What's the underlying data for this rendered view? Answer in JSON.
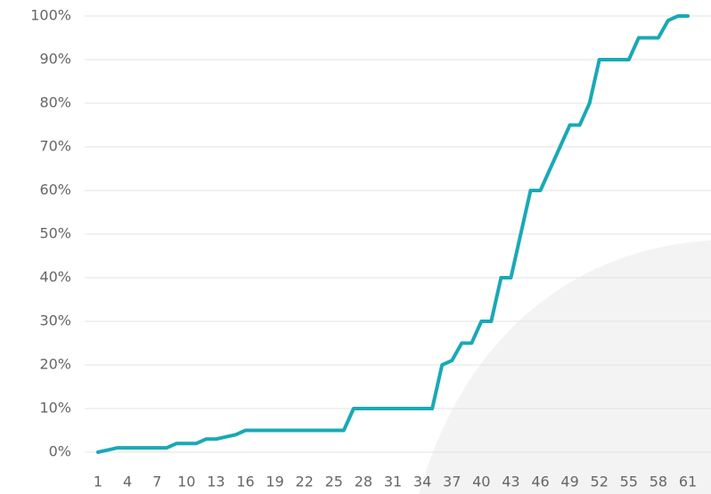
{
  "chart_data": {
    "type": "line",
    "x": [
      1,
      2,
      3,
      4,
      5,
      6,
      7,
      8,
      9,
      10,
      11,
      12,
      13,
      14,
      15,
      16,
      17,
      18,
      19,
      20,
      21,
      22,
      23,
      24,
      25,
      26,
      27,
      28,
      29,
      30,
      31,
      32,
      33,
      34,
      35,
      36,
      37,
      38,
      39,
      40,
      41,
      42,
      43,
      44,
      45,
      46,
      47,
      48,
      49,
      50,
      51,
      52,
      53,
      54,
      55,
      56,
      57,
      58,
      59,
      60,
      61
    ],
    "series": [
      {
        "color": "#19a9b6",
        "values": [
          0,
          0.5,
          1,
          1,
          1,
          1,
          1,
          1,
          2,
          2,
          2,
          3,
          3,
          3.5,
          4,
          5,
          5,
          5,
          5,
          5,
          5,
          5,
          5,
          5,
          5,
          5,
          10,
          10,
          10,
          10,
          10,
          10,
          10,
          10,
          10,
          20,
          21,
          25,
          25,
          30,
          30,
          40,
          40,
          50,
          60,
          60,
          65,
          70,
          75,
          75,
          80,
          90,
          90,
          90,
          90,
          95,
          95,
          95,
          99,
          100,
          100
        ]
      }
    ],
    "xlim": [
      1,
      61
    ],
    "xticks": [
      1,
      4,
      7,
      10,
      13,
      16,
      19,
      22,
      25,
      28,
      31,
      34,
      37,
      40,
      43,
      46,
      49,
      52,
      55,
      58,
      61
    ],
    "ylim": [
      0,
      100
    ],
    "yticks": [
      {
        "value": 0,
        "label": "0%"
      },
      {
        "value": 10,
        "label": "10%"
      },
      {
        "value": 20,
        "label": "20%"
      },
      {
        "value": 30,
        "label": "30%"
      },
      {
        "value": 40,
        "label": "40%"
      },
      {
        "value": 50,
        "label": "50%"
      },
      {
        "value": 60,
        "label": "60%"
      },
      {
        "value": 70,
        "label": "70%"
      },
      {
        "value": 80,
        "label": "80%"
      },
      {
        "value": 90,
        "label": "90%"
      },
      {
        "value": 100,
        "label": "100%"
      }
    ],
    "grid": true
  }
}
